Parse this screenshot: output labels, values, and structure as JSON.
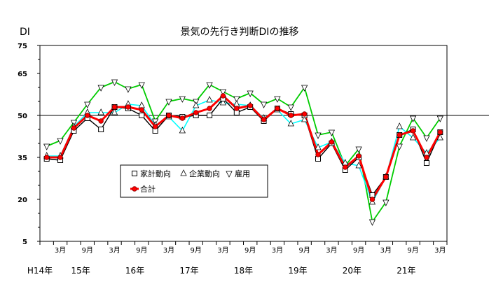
{
  "chart_data": {
    "type": "line",
    "title": "景気の先行き判断DIの推移",
    "ylabel": "DI",
    "ylim": [
      5,
      75
    ],
    "y_ticks": [
      {
        "value": 75,
        "label": "75",
        "bold": true
      },
      {
        "value": 65,
        "label": "65",
        "bold": true
      },
      {
        "value": 50,
        "label": "50",
        "bold": true
      },
      {
        "value": 35,
        "label": "35",
        "bold": true
      },
      {
        "value": 20,
        "label": "20",
        "bold": true
      },
      {
        "value": 5,
        "label": "5",
        "bold": true
      }
    ],
    "reference_line": 50,
    "x_count": 30,
    "month_ticks": [
      {
        "index": 1,
        "label": "3月"
      },
      {
        "index": 3,
        "label": "9月"
      },
      {
        "index": 5,
        "label": "3月"
      },
      {
        "index": 7,
        "label": "9月"
      },
      {
        "index": 9,
        "label": "3月"
      },
      {
        "index": 11,
        "label": "9月"
      },
      {
        "index": 13,
        "label": "3月"
      },
      {
        "index": 15,
        "label": "9月"
      },
      {
        "index": 17,
        "label": "3月"
      },
      {
        "index": 19,
        "label": "9月"
      },
      {
        "index": 21,
        "label": "3月"
      },
      {
        "index": 23,
        "label": "9月"
      },
      {
        "index": 25,
        "label": "3月"
      },
      {
        "index": 27,
        "label": "9月"
      },
      {
        "index": 29,
        "label": "3月"
      }
    ],
    "year_labels": [
      {
        "index": -0.5,
        "label": "H14年"
      },
      {
        "index": 2.5,
        "label": "15年"
      },
      {
        "index": 6.5,
        "label": "16年"
      },
      {
        "index": 10.5,
        "label": "17年"
      },
      {
        "index": 14.5,
        "label": "18年"
      },
      {
        "index": 18.5,
        "label": "19年"
      },
      {
        "index": 22.5,
        "label": "20年"
      },
      {
        "index": 26.5,
        "label": "21年"
      }
    ],
    "series": [
      {
        "name": "家計動向",
        "marker": "square",
        "color": "#000000",
        "values": [
          34.5,
          34,
          44.5,
          49,
          45,
          53,
          52.5,
          50,
          44.5,
          50,
          49.5,
          50,
          50,
          56,
          51,
          53,
          48,
          52.5,
          50.5,
          50,
          34.5,
          40,
          30.5,
          35,
          21.5,
          28,
          43,
          45,
          33,
          44
        ]
      },
      {
        "name": "企業動向",
        "marker": "triangle-up",
        "color": "#00ffff",
        "values": [
          35.5,
          35.5,
          46,
          51,
          51,
          51,
          54,
          53.5,
          46.5,
          49.5,
          44.5,
          53.5,
          55.5,
          54.5,
          54,
          53.5,
          49,
          52,
          47,
          48.5,
          38.5,
          40.5,
          33,
          32,
          19,
          28,
          46,
          42,
          36.5,
          42
        ]
      },
      {
        "name": "雇用",
        "marker": "triangle-down",
        "color": "#00cc00",
        "values": [
          39,
          41,
          47.5,
          54,
          60,
          62,
          59.5,
          61,
          48,
          55,
          56,
          55,
          61,
          58.5,
          56,
          58,
          54,
          56,
          53,
          60,
          43,
          44,
          32,
          38,
          12,
          19,
          39,
          49,
          42,
          49
        ]
      },
      {
        "name": "合計",
        "marker": "circle",
        "color": "#ff0000",
        "values": [
          35,
          35,
          45.5,
          50,
          48,
          53,
          53,
          52,
          46,
          50,
          49,
          51,
          52.5,
          57,
          52.5,
          53.5,
          48.5,
          52.5,
          50,
          50.5,
          36,
          40.5,
          31.5,
          35.5,
          20,
          28,
          43,
          44.5,
          35,
          44
        ]
      }
    ],
    "grid": false,
    "legend_position": "center-left"
  }
}
